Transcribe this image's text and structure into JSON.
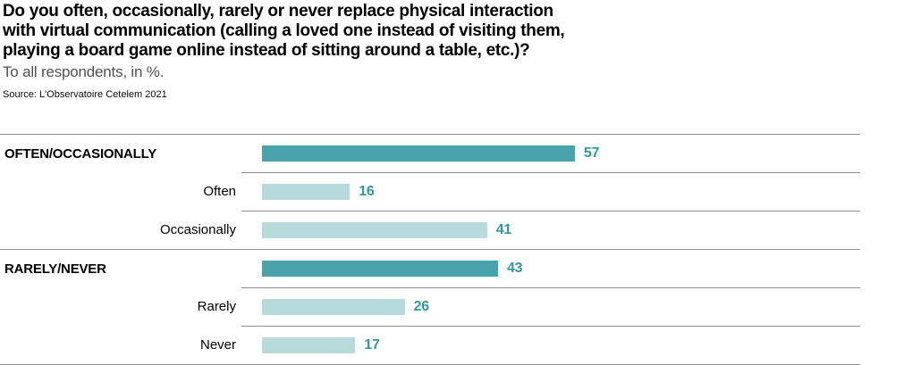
{
  "header": {
    "title_lines": [
      "Do you often, occasionally, rarely or never replace physical interaction",
      "with virtual communication (calling a loved one instead of visiting them,",
      "playing a board game online instead of sitting around a table, etc.)?"
    ],
    "subtitle": "To all respondents, in %.",
    "source": "Source: L'Observatoire Cetelem 2021"
  },
  "chart_data": {
    "type": "bar",
    "orientation": "horizontal",
    "unit": "%",
    "title": "Do you often, occasionally, rarely or never replace physical interaction with virtual communication (calling a loved one instead of visiting them, playing a board game online instead of sitting around a table, etc.)?",
    "subtitle": "To all respondents, in %.",
    "source": "Source: L'Observatoire Cetelem 2021",
    "categories": [
      "OFTEN/OCCASIONALLY",
      "Often",
      "Occasionally",
      "RARELY/NEVER",
      "Rarely",
      "Never"
    ],
    "values": [
      57,
      16,
      41,
      43,
      26,
      17
    ],
    "rows": [
      {
        "label": "OFTEN/OCCASIONALLY",
        "value": 57,
        "emphasis": "group"
      },
      {
        "label": "Often",
        "value": 16,
        "emphasis": "sub"
      },
      {
        "label": "Occasionally",
        "value": 41,
        "emphasis": "sub"
      },
      {
        "label": "RARELY/NEVER",
        "value": 43,
        "emphasis": "group"
      },
      {
        "label": "Rarely",
        "value": 26,
        "emphasis": "sub"
      },
      {
        "label": "Never",
        "value": 17,
        "emphasis": "sub"
      }
    ],
    "colors": {
      "group_bar": "#48a4aa",
      "sub_bar": "#b7dadb",
      "value_label": "#2f99a0",
      "separator_line": "#8f8f8f"
    },
    "layout": {
      "grid": "horizontal row separators only",
      "value_labels": "right of bar end",
      "axis": "none visible",
      "data_labels_shown": true
    }
  }
}
